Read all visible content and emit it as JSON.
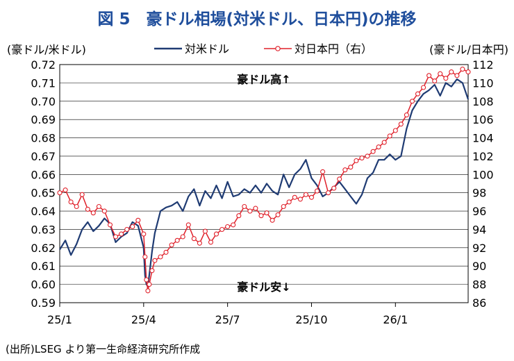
{
  "title": "図 5　豪ドル相場(対米ドル、日本円)の推移",
  "source": "(出所)LSEG より第一生命経済研究所作成",
  "chart_data": {
    "type": "line",
    "left_axis_unit": "(豪ドル/米ドル)",
    "right_axis_unit": "(豪ドル/日本円)",
    "y_left": {
      "min": 0.59,
      "max": 0.72,
      "ticks": [
        "0.72",
        "0.71",
        "0.70",
        "0.69",
        "0.68",
        "0.67",
        "0.66",
        "0.65",
        "0.64",
        "0.63",
        "0.62",
        "0.61",
        "0.60",
        "0.59"
      ]
    },
    "y_right": {
      "min": 86,
      "max": 112,
      "ticks": [
        "112",
        "110",
        "108",
        "106",
        "104",
        "102",
        "100",
        "98",
        "96",
        "94",
        "92",
        "90",
        "88",
        "86"
      ]
    },
    "x_ticks": [
      "25/1",
      "25/4",
      "25/7",
      "25/10",
      "26/1"
    ],
    "x_tick_months": [
      0,
      3,
      6,
      9,
      12
    ],
    "x_range_months": [
      0,
      14.6
    ],
    "annotation_up": "豪ドル高↑",
    "annotation_down": "豪ドル安↓",
    "series": [
      {
        "name": "対米ドル",
        "axis": "left",
        "color": "#1f3b73",
        "x": [
          0,
          0.2,
          0.4,
          0.6,
          0.8,
          1.0,
          1.2,
          1.4,
          1.6,
          1.8,
          2.0,
          2.2,
          2.4,
          2.6,
          2.8,
          3.0,
          3.05,
          3.1,
          3.15,
          3.2,
          3.3,
          3.4,
          3.6,
          3.8,
          4.0,
          4.2,
          4.4,
          4.6,
          4.8,
          5.0,
          5.2,
          5.4,
          5.6,
          5.8,
          6.0,
          6.2,
          6.4,
          6.6,
          6.8,
          7.0,
          7.2,
          7.4,
          7.6,
          7.8,
          8.0,
          8.2,
          8.4,
          8.6,
          8.8,
          9.0,
          9.2,
          9.4,
          9.6,
          9.8,
          10.0,
          10.2,
          10.4,
          10.6,
          10.8,
          11.0,
          11.2,
          11.4,
          11.6,
          11.8,
          12.0,
          12.2,
          12.4,
          12.6,
          12.8,
          13.0,
          13.2,
          13.4,
          13.6,
          13.8,
          14.0,
          14.2,
          14.4,
          14.6
        ],
        "values": [
          0.619,
          0.624,
          0.616,
          0.622,
          0.63,
          0.634,
          0.629,
          0.632,
          0.636,
          0.633,
          0.623,
          0.626,
          0.628,
          0.634,
          0.632,
          0.62,
          0.605,
          0.6,
          0.599,
          0.605,
          0.618,
          0.628,
          0.64,
          0.642,
          0.643,
          0.645,
          0.64,
          0.648,
          0.652,
          0.643,
          0.651,
          0.647,
          0.654,
          0.647,
          0.656,
          0.648,
          0.649,
          0.652,
          0.65,
          0.654,
          0.65,
          0.655,
          0.651,
          0.649,
          0.66,
          0.653,
          0.66,
          0.663,
          0.668,
          0.658,
          0.654,
          0.648,
          0.65,
          0.653,
          0.656,
          0.652,
          0.648,
          0.644,
          0.649,
          0.658,
          0.661,
          0.668,
          0.668,
          0.671,
          0.668,
          0.67,
          0.685,
          0.695,
          0.7,
          0.704,
          0.706,
          0.709,
          0.703,
          0.71,
          0.708,
          0.712,
          0.71,
          0.701
        ]
      },
      {
        "name": "対日本円（右）",
        "axis": "right",
        "color": "#e0202a",
        "x": [
          0,
          0.2,
          0.4,
          0.6,
          0.8,
          1.0,
          1.2,
          1.4,
          1.6,
          1.8,
          2.0,
          2.2,
          2.4,
          2.6,
          2.8,
          3.0,
          3.05,
          3.1,
          3.15,
          3.2,
          3.3,
          3.4,
          3.6,
          3.8,
          4.0,
          4.2,
          4.4,
          4.6,
          4.8,
          5.0,
          5.2,
          5.4,
          5.6,
          5.8,
          6.0,
          6.2,
          6.4,
          6.6,
          6.8,
          7.0,
          7.2,
          7.4,
          7.6,
          7.8,
          8.0,
          8.2,
          8.4,
          8.6,
          8.8,
          9.0,
          9.2,
          9.4,
          9.6,
          9.8,
          10.0,
          10.2,
          10.4,
          10.6,
          10.8,
          11.0,
          11.2,
          11.4,
          11.6,
          11.8,
          12.0,
          12.2,
          12.4,
          12.6,
          12.8,
          13.0,
          13.2,
          13.4,
          13.6,
          13.8,
          14.0,
          14.2,
          14.4,
          14.6
        ],
        "values": [
          98.0,
          98.3,
          97.0,
          96.5,
          97.8,
          96.2,
          95.8,
          96.5,
          96.0,
          94.5,
          93.2,
          93.5,
          94.0,
          94.3,
          95.0,
          93.5,
          91.0,
          88.5,
          87.3,
          88.0,
          89.5,
          90.6,
          91.0,
          91.5,
          92.3,
          92.8,
          93.2,
          94.5,
          93.0,
          92.5,
          93.8,
          92.6,
          93.5,
          94.0,
          94.3,
          94.5,
          95.5,
          96.5,
          96.0,
          96.3,
          95.5,
          95.8,
          95.0,
          95.6,
          96.5,
          97.0,
          97.5,
          97.3,
          97.8,
          97.5,
          98.2,
          100.3,
          98.0,
          98.5,
          99.5,
          100.5,
          100.8,
          101.5,
          101.8,
          102.0,
          102.5,
          103.0,
          103.5,
          104.2,
          104.8,
          105.5,
          106.5,
          108.0,
          108.8,
          109.5,
          110.8,
          110.2,
          111.0,
          110.5,
          111.2,
          110.8,
          111.5,
          111.2
        ]
      }
    ]
  }
}
